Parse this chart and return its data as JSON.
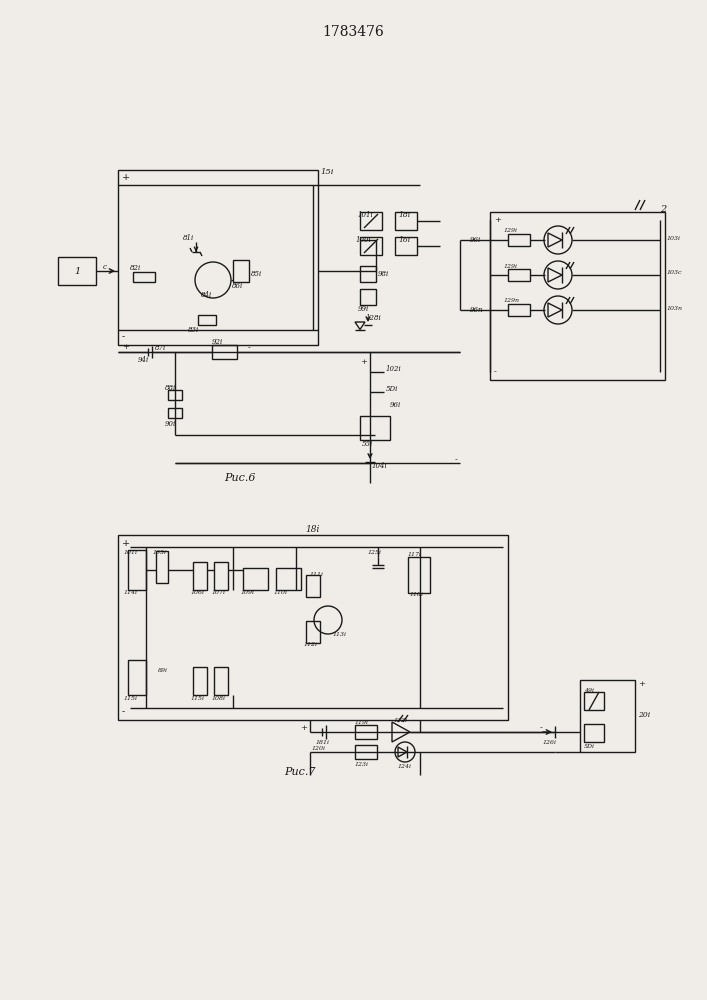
{
  "title": "1783476",
  "fig6_label": "Рис.6",
  "fig7_label": "Рис.7",
  "bg_color": "#f0ede8",
  "line_color": "#1a1a1a",
  "line_width": 1.0
}
